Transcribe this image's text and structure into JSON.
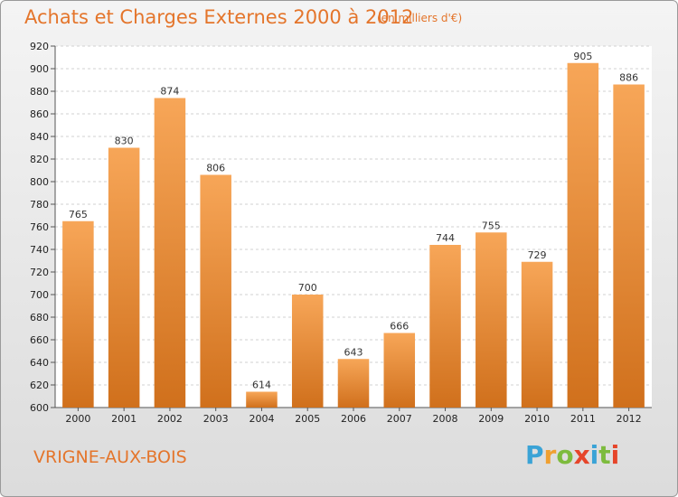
{
  "header": {
    "title": "Achats et Charges Externes 2000 à 2012",
    "subtitle": "(en milliers d'€)"
  },
  "footer": {
    "place": "VRIGNE-AUX-BOIS",
    "logo_text": "Proxiti"
  },
  "colors": {
    "bar_top": "#f7a658",
    "bar_bottom": "#d0701c",
    "text_accent": "#e4752b"
  },
  "chart_data": {
    "type": "bar",
    "title": "Achats et Charges Externes 2000 à 2012",
    "subtitle": "(en milliers d'€)",
    "categories": [
      "2000",
      "2001",
      "2002",
      "2003",
      "2004",
      "2005",
      "2006",
      "2007",
      "2008",
      "2009",
      "2010",
      "2011",
      "2012"
    ],
    "values": [
      765,
      830,
      874,
      806,
      614,
      700,
      643,
      666,
      744,
      755,
      729,
      905,
      886
    ],
    "ylim": [
      600,
      920
    ],
    "yticks": [
      600,
      620,
      640,
      660,
      680,
      700,
      720,
      740,
      760,
      780,
      800,
      820,
      840,
      860,
      880,
      900,
      920
    ],
    "grid": true,
    "data_labels": true,
    "xlabel": "",
    "ylabel": ""
  }
}
